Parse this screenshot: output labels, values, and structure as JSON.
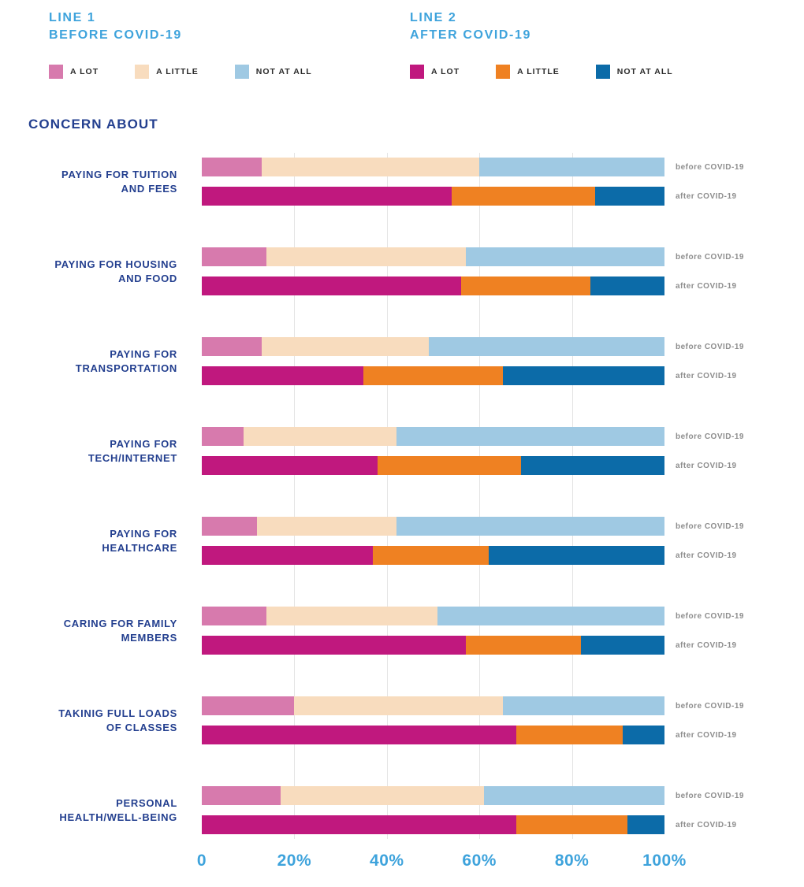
{
  "title": "CONCERN ABOUT",
  "colors": {
    "before_a_lot": "#D77AAD",
    "before_a_little": "#F8DCBE",
    "before_not_at_all": "#9FC9E3",
    "after_a_lot": "#C0187E",
    "after_a_little": "#EF8122",
    "after_not_at_all": "#0C6BA8",
    "category_text": "#233F8F",
    "header_cyan": "#3EA3DC",
    "row_tag_gray": "#8D8D8D",
    "gridline": "#E4E4E4"
  },
  "legend": {
    "groups": [
      {
        "title_line1": "LINE 1",
        "title_line2": "BEFORE COVID-19",
        "items": [
          {
            "label": "A LOT",
            "color": "#D77AAD"
          },
          {
            "label": "A LITTLE",
            "color": "#F8DCBE"
          },
          {
            "label": "NOT AT ALL",
            "color": "#9FC9E3"
          }
        ]
      },
      {
        "title_line1": "LINE 2",
        "title_line2": "AFTER COVID-19",
        "items": [
          {
            "label": "A LOT",
            "color": "#C0187E"
          },
          {
            "label": "A LITTLE",
            "color": "#EF8122"
          },
          {
            "label": "NOT AT ALL",
            "color": "#0C6BA8"
          }
        ]
      }
    ]
  },
  "chart_data": {
    "type": "bar",
    "orientation": "horizontal",
    "stacked": true,
    "unit": "%",
    "xlim": [
      0,
      100
    ],
    "x_ticks": [
      "0",
      "20%",
      "40%",
      "60%",
      "80%",
      "100%"
    ],
    "gridline_percents": [
      20,
      40,
      60,
      80
    ],
    "segment_order": [
      "A LOT",
      "A LITTLE",
      "NOT AT ALL"
    ],
    "row_labels": {
      "before": "before COVID-19",
      "after": "after COVID-19"
    },
    "categories": [
      "PAYING FOR TUITION\nAND FEES",
      "PAYING FOR HOUSING\nAND FOOD",
      "PAYING FOR\nTRANSPORTATION",
      "PAYING FOR\nTECH/INTERNET",
      "PAYING FOR\nHEALTHCARE",
      "CARING FOR FAMILY\nMEMBERS",
      "TAKINIG FULL LOADS\nOF CLASSES",
      "PERSONAL\nHEALTH/WELL-BEING"
    ],
    "series": [
      {
        "name": "before COVID-19",
        "colors": [
          "#D77AAD",
          "#F8DCBE",
          "#9FC9E3"
        ],
        "values": [
          [
            13,
            47,
            40
          ],
          [
            14,
            43,
            43
          ],
          [
            13,
            36,
            51
          ],
          [
            9,
            33,
            58
          ],
          [
            12,
            30,
            58
          ],
          [
            14,
            37,
            49
          ],
          [
            20,
            45,
            35
          ],
          [
            17,
            44,
            39
          ]
        ]
      },
      {
        "name": "after COVID-19",
        "colors": [
          "#C0187E",
          "#EF8122",
          "#0C6BA8"
        ],
        "values": [
          [
            54,
            31,
            15
          ],
          [
            56,
            28,
            16
          ],
          [
            35,
            30,
            35
          ],
          [
            38,
            31,
            31
          ],
          [
            37,
            25,
            38
          ],
          [
            57,
            25,
            18
          ],
          [
            68,
            23,
            9
          ],
          [
            68,
            24,
            8
          ]
        ]
      }
    ]
  }
}
